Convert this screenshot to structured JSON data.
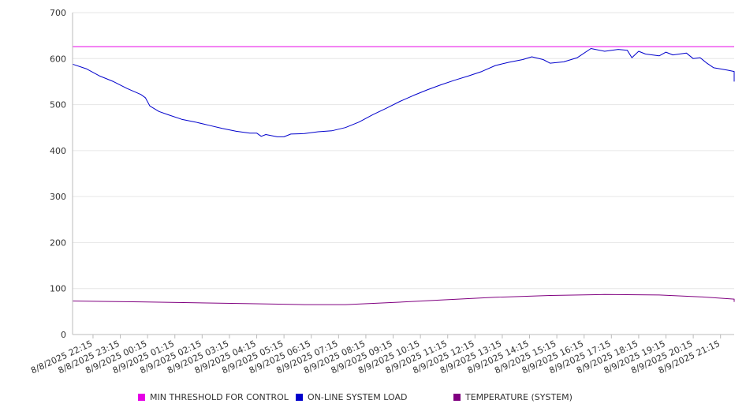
{
  "chart_data": {
    "type": "line",
    "ylim": [
      0,
      700
    ],
    "yticks": [
      0,
      100,
      200,
      300,
      400,
      500,
      600,
      700
    ],
    "x_start": "8/8/2025 21:30",
    "x_end": "8/9/2025 21:45",
    "x_tick_labels": [
      "8/8/2025 22:15",
      "8/8/2025 23:15",
      "8/9/2025 00:15",
      "8/9/2025 01:15",
      "8/9/2025 02:15",
      "8/9/2025 03:15",
      "8/9/2025 04:15",
      "8/9/2025 05:15",
      "8/9/2025 06:15",
      "8/9/2025 07:15",
      "8/9/2025 08:15",
      "8/9/2025 09:15",
      "8/9/2025 10:15",
      "8/9/2025 11:15",
      "8/9/2025 12:15",
      "8/9/2025 13:15",
      "8/9/2025 14:15",
      "8/9/2025 15:15",
      "8/9/2025 16:15",
      "8/9/2025 17:15",
      "8/9/2025 18:15",
      "8/9/2025 19:15",
      "8/9/2025 20:15",
      "8/9/2025 21:15"
    ],
    "grid": true,
    "legend_position": "bottom",
    "series": [
      {
        "name": "MIN THRESHOLD FOR CONTROL",
        "color": "#e600e6",
        "points": [
          [
            "8/8/2025 21:30",
            626
          ],
          [
            "8/9/2025 21:45",
            626
          ]
        ]
      },
      {
        "name": "ON-LINE SYSTEM LOAD",
        "color": "#0000cc",
        "points": [
          [
            "8/8/2025 21:30",
            588
          ],
          [
            "8/8/2025 22:00",
            578
          ],
          [
            "8/8/2025 22:30",
            562
          ],
          [
            "8/8/2025 23:00",
            550
          ],
          [
            "8/8/2025 23:30",
            535
          ],
          [
            "8/9/2025 00:00",
            522
          ],
          [
            "8/9/2025 00:10",
            515
          ],
          [
            "8/9/2025 00:20",
            497
          ],
          [
            "8/9/2025 00:40",
            485
          ],
          [
            "8/9/2025 01:00",
            478
          ],
          [
            "8/9/2025 01:30",
            468
          ],
          [
            "8/9/2025 02:00",
            462
          ],
          [
            "8/9/2025 02:30",
            455
          ],
          [
            "8/9/2025 03:00",
            448
          ],
          [
            "8/9/2025 03:30",
            442
          ],
          [
            "8/9/2025 04:00",
            438
          ],
          [
            "8/9/2025 04:15",
            438
          ],
          [
            "8/9/2025 04:25",
            431
          ],
          [
            "8/9/2025 04:35",
            435
          ],
          [
            "8/9/2025 05:00",
            430
          ],
          [
            "8/9/2025 05:15",
            430
          ],
          [
            "8/9/2025 05:30",
            436
          ],
          [
            "8/9/2025 06:00",
            437
          ],
          [
            "8/9/2025 06:30",
            441
          ],
          [
            "8/9/2025 07:00",
            443
          ],
          [
            "8/9/2025 07:30",
            450
          ],
          [
            "8/9/2025 08:00",
            462
          ],
          [
            "8/9/2025 08:30",
            478
          ],
          [
            "8/9/2025 09:00",
            492
          ],
          [
            "8/9/2025 09:30",
            507
          ],
          [
            "8/9/2025 10:00",
            520
          ],
          [
            "8/9/2025 10:30",
            532
          ],
          [
            "8/9/2025 11:00",
            543
          ],
          [
            "8/9/2025 11:30",
            553
          ],
          [
            "8/9/2025 12:00",
            562
          ],
          [
            "8/9/2025 12:30",
            572
          ],
          [
            "8/9/2025 13:00",
            585
          ],
          [
            "8/9/2025 13:30",
            592
          ],
          [
            "8/9/2025 14:00",
            598
          ],
          [
            "8/9/2025 14:20",
            604
          ],
          [
            "8/9/2025 14:45",
            598
          ],
          [
            "8/9/2025 15:00",
            590
          ],
          [
            "8/9/2025 15:30",
            593
          ],
          [
            "8/9/2025 16:00",
            602
          ],
          [
            "8/9/2025 16:30",
            622
          ],
          [
            "8/9/2025 17:00",
            616
          ],
          [
            "8/9/2025 17:30",
            620
          ],
          [
            "8/9/2025 17:50",
            618
          ],
          [
            "8/9/2025 18:00",
            602
          ],
          [
            "8/9/2025 18:15",
            616
          ],
          [
            "8/9/2025 18:30",
            610
          ],
          [
            "8/9/2025 19:00",
            606
          ],
          [
            "8/9/2025 19:15",
            614
          ],
          [
            "8/9/2025 19:30",
            608
          ],
          [
            "8/9/2025 20:00",
            612
          ],
          [
            "8/9/2025 20:15",
            600
          ],
          [
            "8/9/2025 20:30",
            602
          ],
          [
            "8/9/2025 20:45",
            590
          ],
          [
            "8/9/2025 21:00",
            580
          ],
          [
            "8/9/2025 21:30",
            575
          ],
          [
            "8/9/2025 21:45",
            572
          ],
          [
            "8/9/2025 22:00",
            565
          ],
          [
            "8/9/2025 22:15",
            558
          ],
          [
            "8/9/2025 22:30",
            550
          ]
        ]
      },
      {
        "name": "TEMPERATURE (SYSTEM)",
        "color": "#800080",
        "points": [
          [
            "8/8/2025 21:30",
            73
          ],
          [
            "8/9/2025 00:00",
            71
          ],
          [
            "8/9/2025 02:00",
            69
          ],
          [
            "8/9/2025 04:00",
            67
          ],
          [
            "8/9/2025 06:00",
            65
          ],
          [
            "8/9/2025 07:30",
            65
          ],
          [
            "8/9/2025 09:00",
            69
          ],
          [
            "8/9/2025 11:00",
            75
          ],
          [
            "8/9/2025 13:00",
            81
          ],
          [
            "8/9/2025 15:00",
            85
          ],
          [
            "8/9/2025 17:00",
            87
          ],
          [
            "8/9/2025 19:00",
            86
          ],
          [
            "8/9/2025 20:30",
            82
          ],
          [
            "8/9/2025 21:45",
            77
          ],
          [
            "8/9/2025 22:30",
            71
          ]
        ]
      }
    ]
  }
}
